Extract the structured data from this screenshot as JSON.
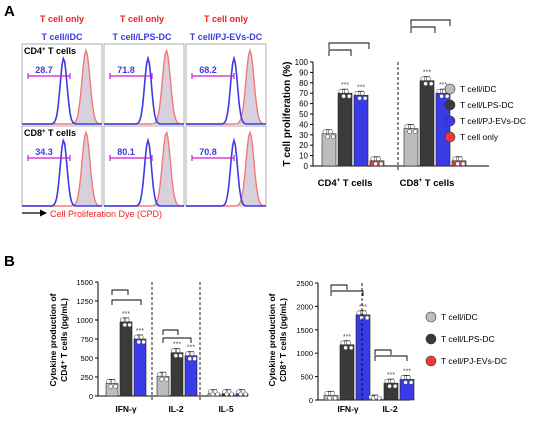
{
  "colors": {
    "gray": "#bdbdbd",
    "black": "#3a3a3a",
    "blue": "#3a3ae6",
    "red": "#ee3a3a",
    "pink": "#f07a7a",
    "magenta": "#d21ad2",
    "fill": "#d9d0dd"
  },
  "panel_a": {
    "letter": "A",
    "col_headers": [
      {
        "top": "T cell only",
        "bottom": "T cell/iDC"
      },
      {
        "top": "T cell only",
        "bottom": "T cell/LPS-DC"
      },
      {
        "top": "T cell only",
        "bottom": "T cell/PJ-EVs-DC"
      }
    ],
    "row_labels": [
      {
        "main": "CD4",
        "sup": "+",
        "rest": " T cells"
      },
      {
        "main": "CD8",
        "sup": "+",
        "rest": " T cells"
      }
    ],
    "histo_values": [
      [
        "28.7",
        "71.8",
        "68.2"
      ],
      [
        "34.3",
        "80.1",
        "70.8"
      ]
    ],
    "x_label": "Cell Proliferation Dye (CPD)"
  },
  "panel_b_letter": "B",
  "legend_a": [
    "T cell/iDC",
    "T cell/LPS-DC",
    "T cell/PJ-EVs-DC",
    "T cell only"
  ],
  "legend_b": [
    "T cell/iDC",
    "T cell/LPS-DC",
    "T cell/PJ-EVs-DC"
  ],
  "chart_data": [
    {
      "type": "bar",
      "ylabel": "T cell proliferation (%)",
      "ylim": [
        0,
        100
      ],
      "yticks": [
        0,
        10,
        20,
        30,
        40,
        50,
        60,
        70,
        80,
        90,
        100
      ],
      "groups": [
        {
          "label": "CD4",
          "sup": "+",
          "rest": " T cells"
        },
        {
          "label": "CD8",
          "sup": "+",
          "rest": " T cells"
        }
      ],
      "series": [
        {
          "name": "T cell/iDC",
          "values": [
            31,
            36
          ]
        },
        {
          "name": "T cell/LPS-DC",
          "values": [
            70,
            82
          ]
        },
        {
          "name": "T cell/PJ-EVs-DC",
          "values": [
            68,
            70
          ]
        },
        {
          "name": "T cell only",
          "values": [
            5,
            5
          ]
        }
      ],
      "annotations": [
        "***",
        "***",
        "***",
        "***"
      ]
    },
    {
      "type": "bar",
      "ylabel": "Cytokine production of",
      "ylabel2": "CD4⁺ T cells (pg/mL)",
      "ylim": [
        0,
        1500
      ],
      "yticks": [
        0,
        250,
        500,
        750,
        1000,
        1250,
        1500
      ],
      "categories": [
        "IFN-γ",
        "IL-2",
        "IL-5"
      ],
      "series": [
        {
          "name": "T cell/iDC",
          "values": [
            165,
            260,
            30
          ]
        },
        {
          "name": "T cell/LPS-DC",
          "values": [
            975,
            570,
            30
          ]
        },
        {
          "name": "T cell/PJ-EVs-DC",
          "values": [
            750,
            530,
            30
          ]
        }
      ],
      "annotations": [
        "***",
        "***",
        "***",
        "***"
      ]
    },
    {
      "type": "bar",
      "ylabel": "Cytokine production of",
      "ylabel2": "CD8⁺ T cells (pg/mL)",
      "ylim": [
        0,
        2500
      ],
      "yticks": [
        0,
        500,
        1000,
        1500,
        2000,
        2500
      ],
      "categories": [
        "IFN-γ",
        "IL-2"
      ],
      "series": [
        {
          "name": "T cell/iDC",
          "values": [
            100,
            20
          ]
        },
        {
          "name": "T cell/LPS-DC",
          "values": [
            1180,
            360
          ]
        },
        {
          "name": "T cell/PJ-EVs-DC",
          "values": [
            1820,
            440
          ]
        }
      ],
      "annotations": [
        "***",
        "***",
        "***",
        "***"
      ]
    }
  ]
}
